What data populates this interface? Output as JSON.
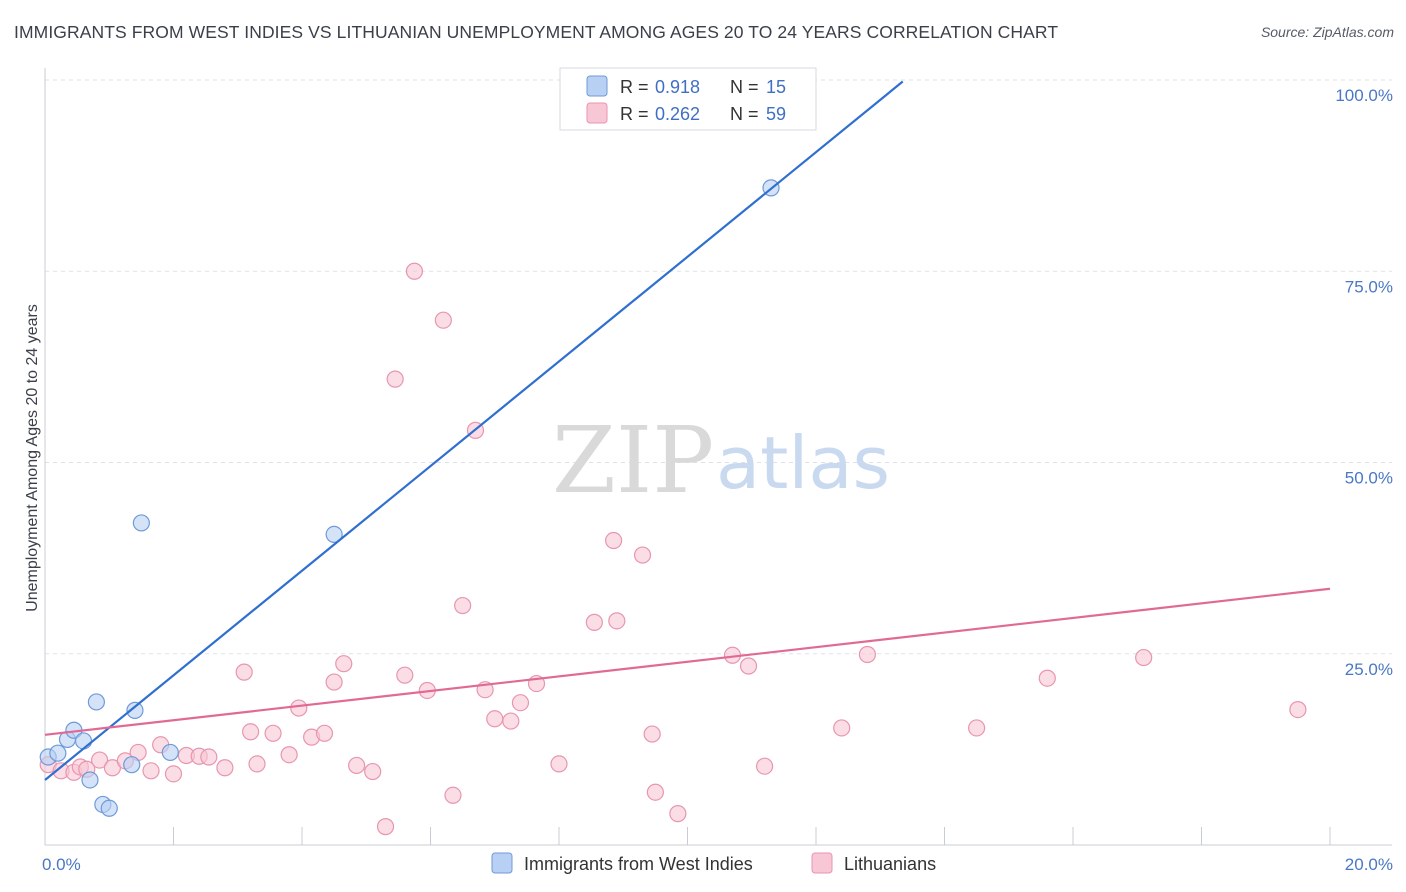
{
  "header": {
    "title": "IMMIGRANTS FROM WEST INDIES VS LITHUANIAN UNEMPLOYMENT AMONG AGES 20 TO 24 YEARS CORRELATION CHART",
    "source": "Source: ZipAtlas.com"
  },
  "watermark": {
    "zip": "ZIP",
    "atlas": "atlas"
  },
  "colors": {
    "blue_fill": "#b8d0f4",
    "blue_stroke": "#6f9ad8",
    "blue_line": "#2f6fd0",
    "pink_fill": "#f8c7d6",
    "pink_stroke": "#e896b0",
    "pink_line": "#e06a94",
    "tick_text": "#4a78c4",
    "grid": "#dde2ea"
  },
  "legend_top": {
    "r_label": "R =",
    "n_label": "N =",
    "rows": [
      {
        "series": "Immigrants from West Indies",
        "r": "0.918",
        "n": "15"
      },
      {
        "series": "Lithuanians",
        "r": "0.262",
        "n": "59"
      }
    ]
  },
  "legend_bottom": [
    "Immigrants from West Indies",
    "Lithuanians"
  ],
  "chart_data": {
    "type": "scatter",
    "title": "IMMIGRANTS FROM WEST INDIES VS LITHUANIAN UNEMPLOYMENT AMONG AGES 20 TO 24 YEARS CORRELATION CHART",
    "xlabel": "",
    "ylabel": "Unemployment Among Ages 20 to 24 years",
    "xlim": [
      0,
      20
    ],
    "ylim": [
      0,
      100
    ],
    "x_tick_labels": [
      "0.0%",
      "20.0%"
    ],
    "y_ticks": [
      25,
      50,
      75,
      100
    ],
    "y_tick_labels": [
      "25.0%",
      "50.0%",
      "75.0%",
      "100.0%"
    ],
    "series": [
      {
        "name": "Immigrants from West Indies",
        "color": "#b8d0f4",
        "points": [
          [
            0.05,
            11.5
          ],
          [
            0.2,
            12.0
          ],
          [
            0.35,
            13.8
          ],
          [
            0.45,
            15.0
          ],
          [
            0.6,
            13.6
          ],
          [
            0.7,
            8.5
          ],
          [
            0.8,
            18.7
          ],
          [
            0.9,
            5.3
          ],
          [
            1.0,
            4.8
          ],
          [
            1.35,
            10.5
          ],
          [
            1.4,
            17.6
          ],
          [
            1.5,
            42.1
          ],
          [
            1.95,
            12.1
          ],
          [
            4.5,
            40.6
          ],
          [
            11.3,
            85.9
          ]
        ],
        "trendline": {
          "x": [
            0.0,
            13.35
          ],
          "y": [
            8.5,
            99.8
          ]
        }
      },
      {
        "name": "Lithuanians",
        "color": "#f8c7d6",
        "points": [
          [
            0.05,
            10.5
          ],
          [
            0.25,
            9.7
          ],
          [
            0.45,
            9.5
          ],
          [
            0.55,
            10.2
          ],
          [
            0.65,
            9.9
          ],
          [
            0.85,
            11.1
          ],
          [
            1.05,
            10.1
          ],
          [
            1.25,
            11.0
          ],
          [
            1.45,
            12.1
          ],
          [
            1.65,
            9.7
          ],
          [
            1.8,
            13.1
          ],
          [
            2.0,
            9.3
          ],
          [
            2.2,
            11.7
          ],
          [
            2.4,
            11.6
          ],
          [
            2.55,
            11.5
          ],
          [
            2.8,
            10.1
          ],
          [
            3.1,
            22.6
          ],
          [
            3.2,
            14.8
          ],
          [
            3.3,
            10.6
          ],
          [
            3.55,
            14.6
          ],
          [
            3.8,
            11.8
          ],
          [
            3.95,
            17.9
          ],
          [
            4.15,
            14.1
          ],
          [
            4.35,
            14.6
          ],
          [
            4.5,
            21.3
          ],
          [
            4.65,
            23.7
          ],
          [
            4.85,
            10.4
          ],
          [
            5.1,
            9.6
          ],
          [
            5.3,
            2.4
          ],
          [
            5.45,
            60.9
          ],
          [
            5.6,
            22.2
          ],
          [
            5.75,
            75.0
          ],
          [
            5.95,
            20.2
          ],
          [
            6.2,
            68.6
          ],
          [
            6.35,
            6.5
          ],
          [
            6.5,
            31.3
          ],
          [
            6.7,
            54.2
          ],
          [
            6.85,
            20.3
          ],
          [
            7.0,
            16.5
          ],
          [
            7.25,
            16.2
          ],
          [
            7.4,
            18.6
          ],
          [
            7.65,
            21.1
          ],
          [
            8.0,
            10.6
          ],
          [
            8.55,
            29.1
          ],
          [
            8.85,
            39.8
          ],
          [
            8.9,
            29.3
          ],
          [
            9.3,
            37.9
          ],
          [
            9.45,
            14.5
          ],
          [
            9.5,
            6.9
          ],
          [
            9.85,
            4.1
          ],
          [
            10.7,
            24.8
          ],
          [
            10.95,
            23.4
          ],
          [
            11.2,
            10.3
          ],
          [
            12.4,
            15.3
          ],
          [
            12.8,
            24.9
          ],
          [
            14.5,
            15.3
          ],
          [
            15.6,
            21.8
          ],
          [
            17.1,
            24.5
          ],
          [
            19.5,
            17.7
          ]
        ],
        "trendline": {
          "x": [
            0.0,
            20.0
          ],
          "y": [
            14.4,
            33.5
          ]
        }
      }
    ]
  }
}
